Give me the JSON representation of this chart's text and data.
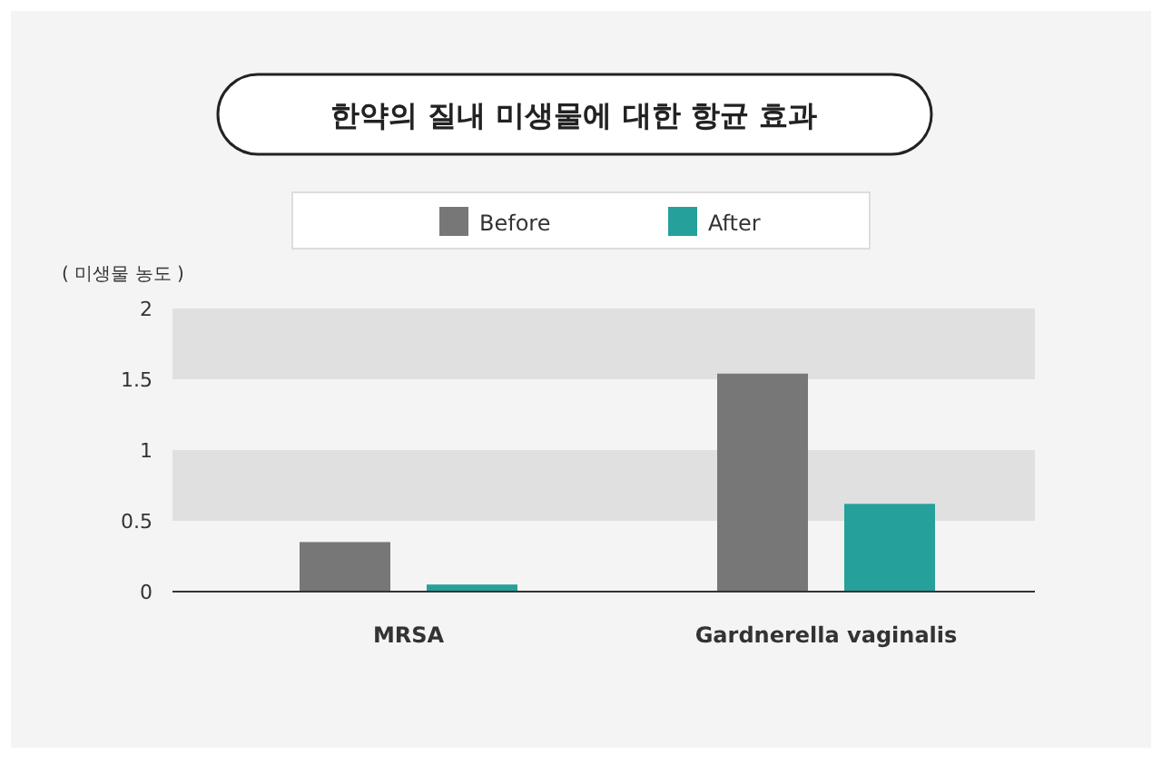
{
  "chart_data": {
    "type": "bar",
    "title": "한약의 질내 미생물에 대한 항균 효과",
    "ylabel": "( 미생물 농도 )",
    "categories": [
      "MRSA",
      "Gardnerella vaginalis"
    ],
    "series": [
      {
        "name": "Before",
        "color": "#777777",
        "values": [
          0.35,
          1.54
        ]
      },
      {
        "name": "After",
        "color": "#26a09a",
        "values": [
          0.05,
          0.62
        ]
      }
    ],
    "ylim": [
      0,
      2
    ],
    "yticks": [
      0,
      0.5,
      1,
      1.5,
      2
    ],
    "bands": [
      {
        "axis": "y",
        "from": 0.5,
        "to": 1,
        "color": "#e0e0e0"
      },
      {
        "axis": "y",
        "from": 1.5,
        "to": 2,
        "color": "#e0e0e0"
      }
    ],
    "legend": "top"
  }
}
